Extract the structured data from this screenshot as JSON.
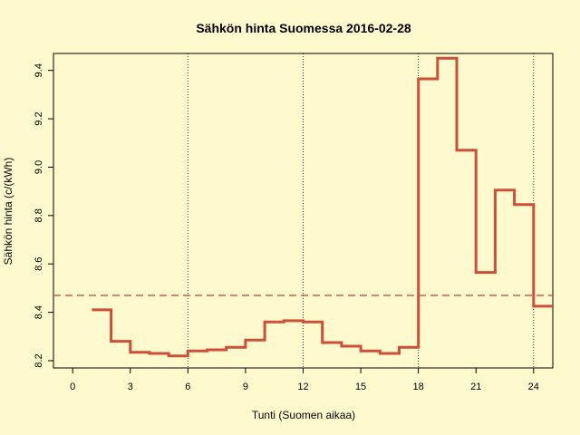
{
  "chart_data": {
    "type": "line",
    "step": true,
    "title": "Sähkön hinta Suomessa 2016-02-28",
    "xlabel": "Tunti (Suomen aikaa)",
    "ylabel": "Sähkön hinta (c/(kWh)",
    "xlim": [
      -1,
      25
    ],
    "ylim": [
      8.17,
      9.47
    ],
    "x_ticks": [
      0,
      3,
      6,
      9,
      12,
      15,
      18,
      21,
      24
    ],
    "y_ticks": [
      8.2,
      8.4,
      8.6,
      8.8,
      9.0,
      9.2,
      9.4
    ],
    "vertical_gridlines_at": [
      6,
      12,
      18,
      24
    ],
    "series": [
      {
        "color": "#cd4f39",
        "x": [
          1,
          2,
          3,
          4,
          5,
          6,
          7,
          8,
          9,
          10,
          11,
          12,
          13,
          14,
          15,
          16,
          17,
          18,
          19,
          20,
          21,
          22,
          23,
          24
        ],
        "values": [
          8.41,
          8.28,
          8.235,
          8.23,
          8.22,
          8.24,
          8.245,
          8.255,
          8.285,
          8.36,
          8.365,
          8.36,
          8.275,
          8.26,
          8.24,
          8.23,
          8.255,
          9.365,
          9.45,
          9.07,
          8.565,
          8.905,
          8.845,
          8.425
        ]
      }
    ],
    "mean_line": {
      "value": 8.47,
      "color": "#cd4f39",
      "style": "dashed"
    },
    "grid": false
  }
}
